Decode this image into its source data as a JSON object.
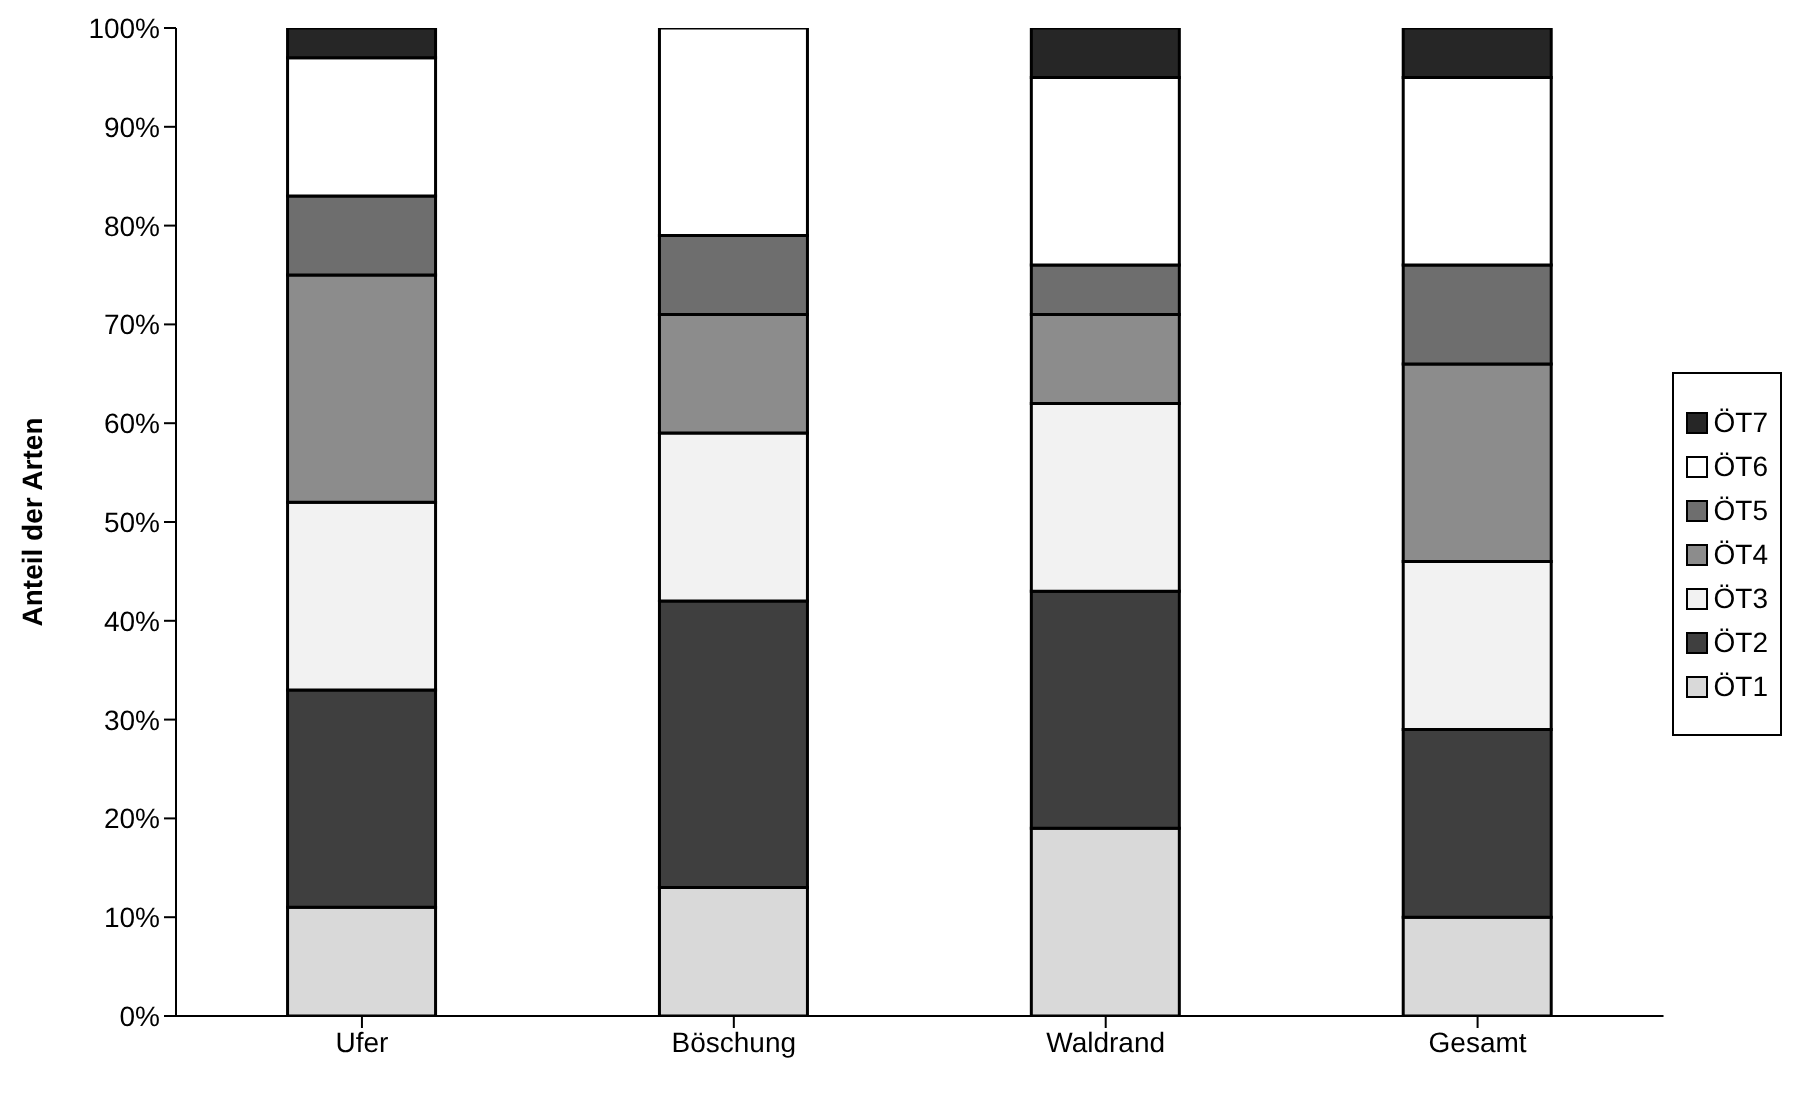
{
  "chart_data": {
    "type": "bar",
    "stacked": true,
    "ylabel": "Anteil der Arten",
    "categories": [
      "Ufer",
      "Böschung",
      "Waldrand",
      "Gesamt"
    ],
    "series": [
      {
        "name": "ÖT1",
        "color": "#d9d9d9",
        "values": [
          11,
          13,
          19,
          10
        ]
      },
      {
        "name": "ÖT2",
        "color": "#3f3f3f",
        "values": [
          22,
          29,
          24,
          19
        ]
      },
      {
        "name": "ÖT3",
        "color": "#f2f2f2",
        "values": [
          19,
          17,
          19,
          17
        ]
      },
      {
        "name": "ÖT4",
        "color": "#8c8c8c",
        "values": [
          23,
          12,
          9,
          20
        ]
      },
      {
        "name": "ÖT5",
        "color": "#6e6e6e",
        "values": [
          8,
          8,
          5,
          10
        ]
      },
      {
        "name": "ÖT6",
        "color": "#ffffff",
        "values": [
          14,
          21,
          19,
          19
        ]
      },
      {
        "name": "ÖT7",
        "color": "#262626",
        "values": [
          3,
          0,
          5,
          5
        ]
      }
    ],
    "ylim": [
      0,
      100
    ],
    "yticks": [
      {
        "value": 0,
        "label": "0%"
      },
      {
        "value": 10,
        "label": "10%"
      },
      {
        "value": 20,
        "label": "20%"
      },
      {
        "value": 30,
        "label": "30%"
      },
      {
        "value": 40,
        "label": "40%"
      },
      {
        "value": 50,
        "label": "50%"
      },
      {
        "value": 60,
        "label": "60%"
      },
      {
        "value": 70,
        "label": "70%"
      },
      {
        "value": 80,
        "label": "80%"
      },
      {
        "value": 90,
        "label": "90%"
      },
      {
        "value": 100,
        "label": "100%"
      }
    ],
    "grid": false,
    "legend": "right"
  }
}
